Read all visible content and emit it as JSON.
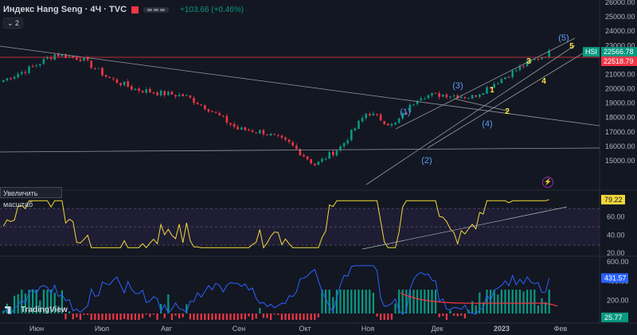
{
  "header": {
    "symbol_title": "Индекс Hang Seng · 4Ч · TVC",
    "change": "+103.66 (+0.46%)",
    "collapse_label": "2"
  },
  "tooltip": {
    "zoom": "Увеличить масштаб"
  },
  "branding": {
    "name": "TradingView"
  },
  "colors": {
    "up": "#089981",
    "down": "#f23645",
    "background": "#131722",
    "rsi": "#f2d83b",
    "osc": "#2962ff",
    "avg": "#f23645",
    "wave": "#2962ff",
    "minor_wave": "#ffeb3b"
  },
  "chart_data": [
    {
      "type": "candlestick",
      "name": "HSI",
      "x_labels": [
        "Июн",
        "Июл",
        "Авг",
        "Сен",
        "Окт",
        "Ноя",
        "Дек",
        "2023",
        "Фев"
      ],
      "ylim": [
        14000,
        26000
      ],
      "y_ticks": [
        15000,
        16000,
        17000,
        18000,
        19000,
        20000,
        21000,
        22000,
        23000,
        24000,
        25000,
        26000
      ],
      "price_labels": [
        {
          "label": "HSI",
          "value": "22566.78"
        },
        {
          "value": "22518.79"
        }
      ],
      "approx_path": [
        {
          "date": "Июн (начало)",
          "close": 20600
        },
        {
          "date": "середина июня",
          "close": 21400
        },
        {
          "date": "конец июня",
          "close": 22400
        },
        {
          "date": "Июл (начало)",
          "close": 22100
        },
        {
          "date": "середина июля",
          "close": 20800
        },
        {
          "date": "Авг",
          "close": 20000
        },
        {
          "date": "середина августа",
          "close": 19700
        },
        {
          "date": "Сен",
          "close": 19500
        },
        {
          "date": "середина сентября",
          "close": 18500
        },
        {
          "date": "конец сентября",
          "close": 17200
        },
        {
          "date": "Окт",
          "close": 17000
        },
        {
          "date": "середина октября",
          "close": 16200
        },
        {
          "date": "конец октября",
          "close": 14700
        },
        {
          "date": "Ноя (начало)",
          "close": 16000
        },
        {
          "date": "середина ноября",
          "close": 18400
        },
        {
          "date": "конец ноября",
          "close": 17400
        },
        {
          "date": "Дек",
          "close": 19500
        },
        {
          "date": "середина декабря",
          "close": 19600
        },
        {
          "date": "конец декабря",
          "close": 19400
        },
        {
          "date": "2023",
          "close": 20500
        },
        {
          "date": "середина января",
          "close": 21600
        },
        {
          "date": "конец января",
          "close": 22500
        }
      ],
      "wave_labels": [
        "(1)",
        "(2)",
        "(3)",
        "(4)",
        "(5)"
      ],
      "minor_wave_labels": [
        "1",
        "2",
        "3",
        "4",
        "5"
      ]
    },
    {
      "type": "line",
      "name": "RSI",
      "ylim": [
        20,
        80
      ],
      "y_ticks": [
        20.0,
        40.0,
        60.0
      ],
      "current_value": "79.22"
    },
    {
      "type": "histogram",
      "name": "oscillator",
      "ylim": [
        0,
        600
      ],
      "y_ticks": [
        200.0,
        400.0,
        600.0
      ],
      "value_labels": [
        "431.57",
        "25.77"
      ]
    }
  ]
}
